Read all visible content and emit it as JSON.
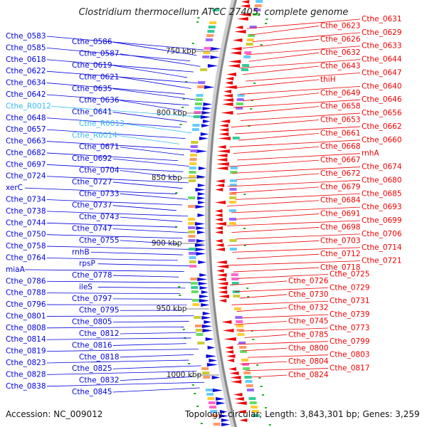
{
  "title": "Clostridium thermocellum ATCC 27405, complete genome",
  "footer": {
    "accession": "Accession: NC_009012",
    "topology": "Topology: circular; Length: 3,843,301 bp; Genes: 3,259"
  },
  "colors": {
    "forward": "#0000dd",
    "reverse": "#ee0000",
    "rna": "#33bbee",
    "backbone": "#888888",
    "tick": "#22aa22"
  },
  "scale_labels": [
    "750 kbp",
    "800 kbp",
    "850 kbp",
    "900 kbp",
    "950 kbp",
    "1000 kbp"
  ],
  "left_labels": [
    "Cthe_0583",
    "Cthe_0586",
    "Cthe_0585",
    "Cthe_0587",
    "Cthe_0618",
    "Cthe_0619",
    "Cthe_0622",
    "Cthe_0621",
    "Cthe_0634",
    "Cthe_0635",
    "Cthe_0642",
    "Cthe_0636",
    "Cthe_R0012",
    "Cthe_0641",
    "Cthe_0648",
    "Cthe_R0013",
    "Cthe_0657",
    "Cthe_R0014",
    "Cthe_0663",
    "Cthe_0671",
    "Cthe_0682",
    "Cthe_0692",
    "Cthe_0697",
    "Cthe_0704",
    "Cthe_0724",
    "Cthe_0727",
    "xerC",
    "Cthe_0733",
    "Cthe_0734",
    "Cthe_0737",
    "Cthe_0738",
    "Cthe_0743",
    "Cthe_0744",
    "Cthe_0747",
    "Cthe_0750",
    "Cthe_0755",
    "Cthe_0758",
    "rnhB",
    "Cthe_0764",
    "rpsP",
    "miaA",
    "Cthe_0778",
    "Cthe_0786",
    "ileS",
    "Cthe_0788",
    "Cthe_0797",
    "Cthe_0796",
    "Cthe_0795",
    "Cthe_0801",
    "Cthe_0805",
    "Cthe_0808",
    "Cthe_0812",
    "Cthe_0814",
    "Cthe_0816",
    "Cthe_0819",
    "Cthe_0818",
    "Cthe_0823",
    "Cthe_0825",
    "Cthe_0828",
    "Cthe_0832",
    "Cthe_0838",
    "Cthe_0845"
  ],
  "right_labels": [
    "Cthe_0631",
    "Cthe_0623",
    "Cthe_0629",
    "Cthe_0626",
    "Cthe_0633",
    "Cthe_0632",
    "Cthe_0644",
    "Cthe_0643",
    "Cthe_0647",
    "thiH",
    "Cthe_0640",
    "Cthe_0649",
    "Cthe_0646",
    "Cthe_0658",
    "Cthe_0656",
    "Cthe_0653",
    "Cthe_0662",
    "Cthe_0661",
    "Cthe_0660",
    "Cthe_0668",
    "rnhA",
    "Cthe_0667",
    "Cthe_0674",
    "Cthe_0672",
    "Cthe_0680",
    "Cthe_0679",
    "Cthe_0685",
    "Cthe_0684",
    "Cthe_0693",
    "Cthe_0691",
    "Cthe_0699",
    "Cthe_0698",
    "Cthe_0706",
    "Cthe_0703",
    "Cthe_0714",
    "Cthe_0712",
    "Cthe_0721",
    "Cthe_0718",
    "Cthe_0725",
    "Cthe_0726",
    "Cthe_0729",
    "Cthe_0730",
    "Cthe_0731",
    "Cthe_0732",
    "Cthe_0739",
    "Cthe_0745",
    "Cthe_0773",
    "Cthe_0785",
    "Cthe_0799",
    "Cthe_0800",
    "Cthe_0803",
    "Cthe_0804",
    "Cthe_0817",
    "Cthe_0824"
  ]
}
